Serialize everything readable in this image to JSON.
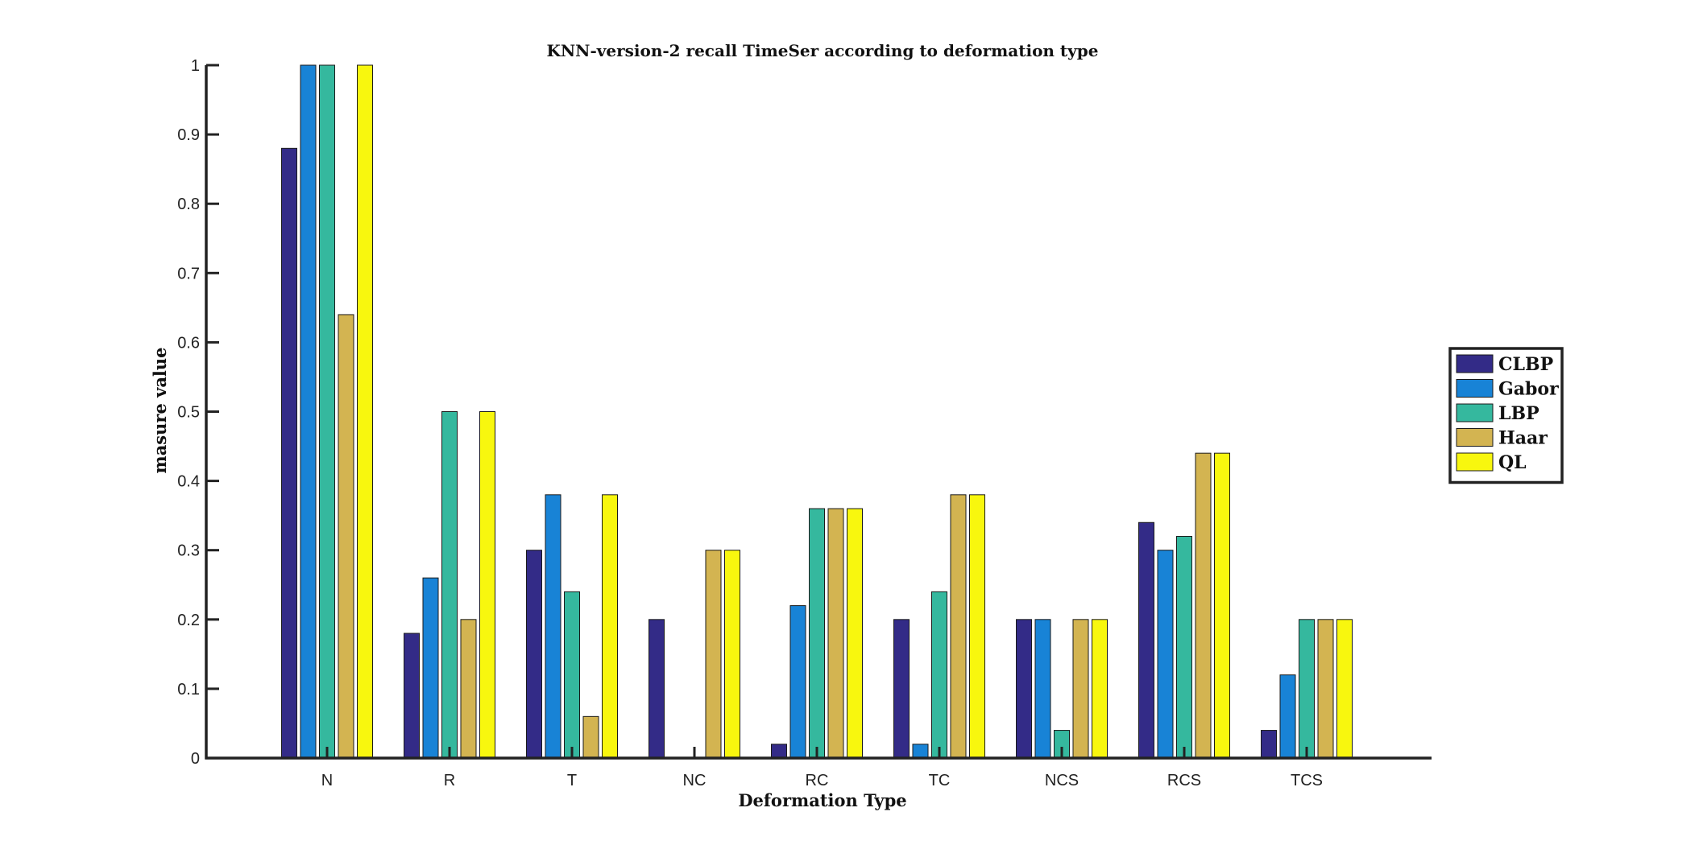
{
  "chart_data": {
    "type": "bar",
    "title": "KNN-version-2 recall TimeSer according to deformation type",
    "xlabel": "Deformation Type",
    "ylabel": "masure value",
    "ylim": [
      0,
      1
    ],
    "yticks": [
      "0",
      "0.1",
      "0.2",
      "0.3",
      "0.4",
      "0.5",
      "0.6",
      "0.7",
      "0.8",
      "0.9",
      "1"
    ],
    "grid": false,
    "legend_position": "right",
    "categories": [
      "N",
      "R",
      "T",
      "NC",
      "RC",
      "TC",
      "NCS",
      "RCS",
      "TCS"
    ],
    "series": [
      {
        "name": "CLBP",
        "color": "#332b87",
        "values": [
          0.88,
          0.18,
          0.3,
          0.2,
          0.02,
          0.2,
          0.2,
          0.34,
          0.04
        ]
      },
      {
        "name": "Gabor",
        "color": "#1883d6",
        "values": [
          1.0,
          0.26,
          0.38,
          0.0,
          0.22,
          0.02,
          0.2,
          0.3,
          0.12
        ]
      },
      {
        "name": "LBP",
        "color": "#35b89e",
        "values": [
          1.0,
          0.5,
          0.24,
          0.0,
          0.36,
          0.24,
          0.04,
          0.32,
          0.2
        ]
      },
      {
        "name": "Haar",
        "color": "#d3b451",
        "values": [
          0.64,
          0.2,
          0.06,
          0.3,
          0.36,
          0.38,
          0.2,
          0.44,
          0.2
        ]
      },
      {
        "name": "QL",
        "color": "#f8f70e",
        "values": [
          1.0,
          0.5,
          0.38,
          0.3,
          0.36,
          0.38,
          0.2,
          0.44,
          0.2
        ]
      }
    ]
  }
}
